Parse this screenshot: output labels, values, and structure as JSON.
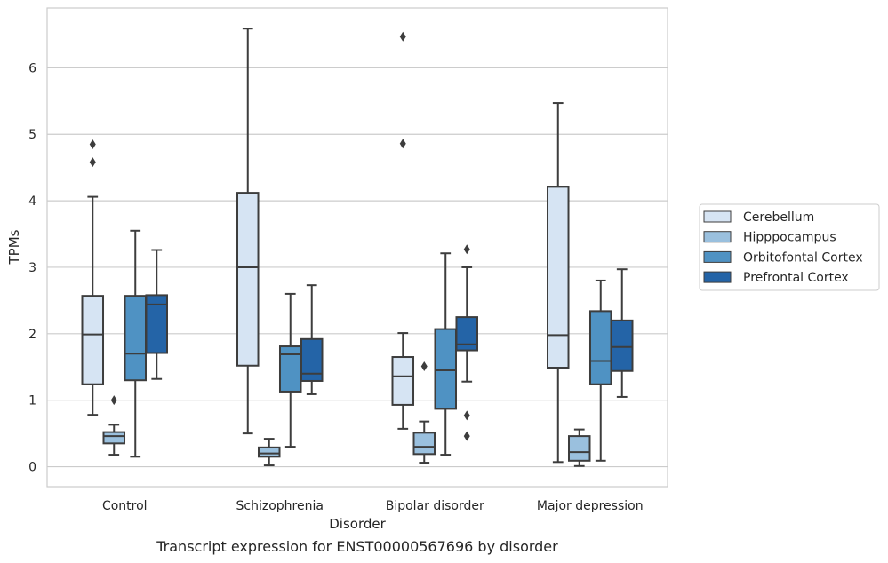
{
  "chart_data": {
    "type": "box",
    "title": "",
    "caption": "Transcript expression for ENST00000567696 by disorder",
    "xlabel": "Disorder",
    "ylabel": "TPMs",
    "ylim": [
      -0.3,
      6.9
    ],
    "yticks": [
      "0",
      "1",
      "2",
      "3",
      "4",
      "5",
      "6"
    ],
    "grid": "horizontal",
    "legend_position": "right",
    "categories": [
      "Control",
      "Schizophrenia",
      "Bipolar disorder",
      "Major depression"
    ],
    "series": [
      {
        "name": "Cerebellum",
        "color": "#d6e4f3",
        "boxes": [
          {
            "q1": 1.24,
            "median": 1.99,
            "q3": 2.57,
            "whislo": 0.78,
            "whishi": 4.06,
            "fliers": [
              4.58,
              4.85
            ]
          },
          {
            "q1": 1.52,
            "median": 3.0,
            "q3": 4.12,
            "whislo": 0.5,
            "whishi": 6.59,
            "fliers": []
          },
          {
            "q1": 0.93,
            "median": 1.36,
            "q3": 1.65,
            "whislo": 0.57,
            "whishi": 2.01,
            "fliers": [
              4.86,
              6.47
            ]
          },
          {
            "q1": 1.49,
            "median": 1.98,
            "q3": 4.21,
            "whislo": 0.07,
            "whishi": 5.47,
            "fliers": []
          }
        ]
      },
      {
        "name": "Hipppocampus",
        "color": "#9ac0de",
        "boxes": [
          {
            "q1": 0.35,
            "median": 0.46,
            "q3": 0.52,
            "whislo": 0.18,
            "whishi": 0.63,
            "fliers": [
              1.0
            ]
          },
          {
            "q1": 0.15,
            "median": 0.2,
            "q3": 0.29,
            "whislo": 0.02,
            "whishi": 0.42,
            "fliers": []
          },
          {
            "q1": 0.19,
            "median": 0.3,
            "q3": 0.51,
            "whislo": 0.06,
            "whishi": 0.68,
            "fliers": [
              1.51
            ]
          },
          {
            "q1": 0.09,
            "median": 0.22,
            "q3": 0.46,
            "whislo": 0.01,
            "whishi": 0.56,
            "fliers": []
          }
        ]
      },
      {
        "name": "Orbitofontal Cortex",
        "color": "#4f92c3",
        "boxes": [
          {
            "q1": 1.3,
            "median": 1.7,
            "q3": 2.57,
            "whislo": 0.15,
            "whishi": 3.55,
            "fliers": []
          },
          {
            "q1": 1.13,
            "median": 1.69,
            "q3": 1.81,
            "whislo": 0.3,
            "whishi": 2.6,
            "fliers": []
          },
          {
            "q1": 0.87,
            "median": 1.45,
            "q3": 2.07,
            "whislo": 0.18,
            "whishi": 3.21,
            "fliers": []
          },
          {
            "q1": 1.24,
            "median": 1.59,
            "q3": 2.34,
            "whislo": 0.09,
            "whishi": 2.8,
            "fliers": []
          }
        ]
      },
      {
        "name": "Prefrontal Cortex",
        "color": "#2464a7",
        "boxes": [
          {
            "q1": 1.71,
            "median": 2.44,
            "q3": 2.58,
            "whislo": 1.32,
            "whishi": 3.26,
            "fliers": []
          },
          {
            "q1": 1.29,
            "median": 1.4,
            "q3": 1.92,
            "whislo": 1.09,
            "whishi": 2.73,
            "fliers": []
          },
          {
            "q1": 1.75,
            "median": 1.84,
            "q3": 2.25,
            "whislo": 1.28,
            "whishi": 3.0,
            "fliers": [
              0.46,
              0.77,
              3.27
            ]
          },
          {
            "q1": 1.44,
            "median": 1.8,
            "q3": 2.2,
            "whislo": 1.05,
            "whishi": 2.97,
            "fliers": []
          }
        ]
      }
    ]
  }
}
